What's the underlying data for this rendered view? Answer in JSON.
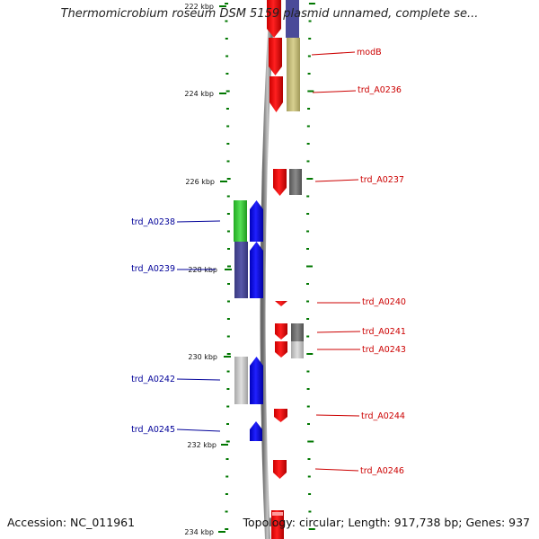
{
  "title": "Thermomicrobium roseum DSM 5159 plasmid unnamed, complete se...",
  "footer": {
    "accession": "Accession: NC_011961",
    "summary": "Topology: circular; Length: 917,738 bp; Genes: 937"
  },
  "colors": {
    "backbone": "#8a8a8a",
    "forward_cds": "#ff0000",
    "reverse_cds": "#0000ff",
    "forward_label": "#cc0000",
    "reverse_label": "#000099",
    "tick": "#007700",
    "cog_olive": "#c8c07a",
    "cog_gray": "#777777",
    "cog_light_gray": "#c8c8c8",
    "cog_green": "#33cc33",
    "cog_slate": "#4a4a99"
  },
  "ruler": {
    "labels": [
      "222 kbp",
      "224 kbp",
      "226 kbp",
      "228 kbp",
      "230 kbp",
      "232 kbp",
      "234 kbp"
    ]
  },
  "genes_forward": [
    {
      "name": "modB"
    },
    {
      "name": "trd_A0236"
    },
    {
      "name": "trd_A0237"
    },
    {
      "name": "trd_A0240"
    },
    {
      "name": "trd_A0241"
    },
    {
      "name": "trd_A0243"
    },
    {
      "name": "trd_A0244"
    },
    {
      "name": "trd_A0246"
    }
  ],
  "genes_reverse": [
    {
      "name": "trd_A0238"
    },
    {
      "name": "trd_A0239"
    },
    {
      "name": "trd_A0242"
    },
    {
      "name": "trd_A0245"
    }
  ]
}
